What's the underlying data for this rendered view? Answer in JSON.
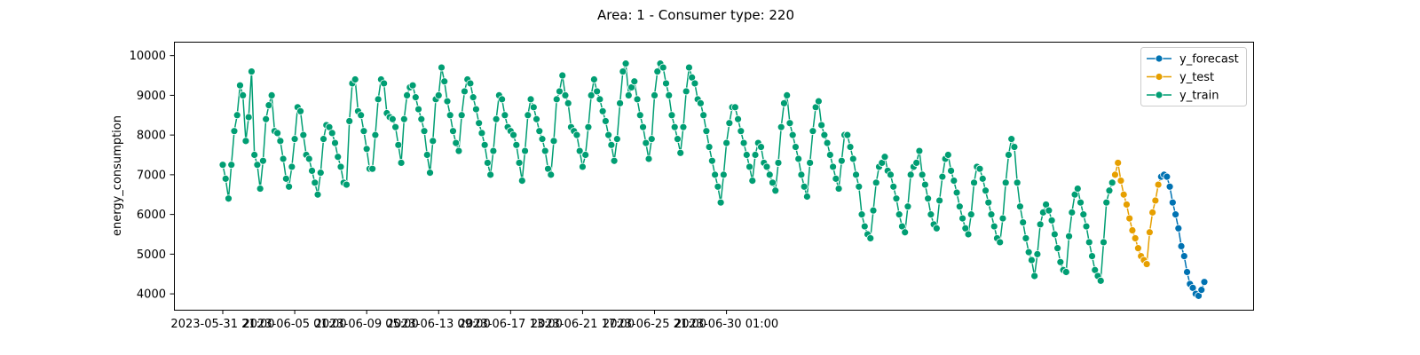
{
  "chart_data": {
    "type": "line",
    "title": "Area: 1 - Consumer type: 220",
    "xlabel": "",
    "ylabel": "energy_consumption",
    "x_start": "2023-05-31 21:00",
    "x_step_hours": 4,
    "x_ticks": [
      "2023-05-31 21:00",
      "2023-06-05 01:00",
      "2023-06-09 05:00",
      "2023-06-13 09:00",
      "2023-06-17 13:00",
      "2023-06-21 17:00",
      "2023-06-25 21:00",
      "2023-06-30 01:00"
    ],
    "y_ticks": [
      4000,
      5000,
      6000,
      7000,
      8000,
      9000,
      10000
    ],
    "ylim": [
      3600,
      10350
    ],
    "grid": false,
    "legend_position": "top-right",
    "legend": [
      "y_forecast",
      "y_test",
      "y_train"
    ],
    "colors": {
      "y_forecast": "#0072b2",
      "y_test": "#e69f00",
      "y_train": "#009e73"
    },
    "series": [
      {
        "name": "y_train",
        "values": [
          7250,
          6900,
          6400,
          7250,
          8100,
          8500,
          9250,
          9000,
          7850,
          8450,
          9600,
          7500,
          7250,
          6650,
          7350,
          8400,
          8750,
          9000,
          8100,
          8050,
          7850,
          7400,
          6900,
          6700,
          7200,
          7900,
          8700,
          8600,
          8000,
          7500,
          7400,
          7100,
          6800,
          6500,
          7050,
          7900,
          8250,
          8200,
          8050,
          7800,
          7450,
          7200,
          6800,
          6750,
          8350,
          9300,
          9400,
          8600,
          8500,
          8100,
          7650,
          7150,
          7150,
          8000,
          8900,
          9400,
          9300,
          8550,
          8450,
          8400,
          8200,
          7750,
          7300,
          8400,
          9000,
          9200,
          9250,
          8950,
          8650,
          8400,
          8100,
          7500,
          7050,
          7850,
          8900,
          9000,
          9700,
          9350,
          8850,
          8500,
          8100,
          7800,
          7600,
          8500,
          9100,
          9400,
          9300,
          8950,
          8650,
          8300,
          8050,
          7750,
          7300,
          7000,
          7600,
          8400,
          9000,
          8900,
          8500,
          8200,
          8100,
          8000,
          7750,
          7300,
          6850,
          7600,
          8500,
          8900,
          8700,
          8400,
          8100,
          7900,
          7600,
          7150,
          7000,
          7850,
          8900,
          9100,
          9500,
          9000,
          8800,
          8200,
          8100,
          8000,
          7600,
          7200,
          7500,
          8200,
          9000,
          9400,
          9100,
          8900,
          8600,
          8350,
          8000,
          7750,
          7350,
          7900,
          8800,
          9600,
          9800,
          9000,
          9200,
          9350,
          8900,
          8500,
          8200,
          7800,
          7400,
          7900,
          9000,
          9600,
          9800,
          9700,
          9300,
          9000,
          8500,
          8200,
          7900,
          7550,
          8200,
          9100,
          9700,
          9450,
          9300,
          8900,
          8800,
          8500,
          8100,
          7700,
          7350,
          7000,
          6700,
          6300,
          7000,
          7800,
          8300,
          8700,
          8700,
          8400,
          8100,
          7800,
          7500,
          7200,
          6850,
          7500,
          7800,
          7700,
          7300,
          7200,
          7000,
          6800,
          6600,
          7300,
          8200,
          8800,
          9000,
          8300,
          8000,
          7700,
          7400,
          7000,
          6700,
          6450,
          7300,
          8100,
          8700,
          8850,
          8250,
          8000,
          7800,
          7500,
          7200,
          6900,
          6650,
          7350,
          8000,
          8000,
          7700,
          7400,
          7000,
          6700,
          6000,
          5700,
          5500,
          5400,
          6100,
          6800,
          7200,
          7300,
          7450,
          7100,
          7000,
          6700,
          6400,
          6000,
          5700,
          5550,
          6200,
          7000,
          7200,
          7300,
          7600,
          7000,
          6750,
          6400,
          6000,
          5750,
          5650,
          6350,
          6950,
          7400,
          7500,
          7100,
          6850,
          6550,
          6200,
          5900,
          5650,
          5500,
          6000,
          6800,
          7200,
          7150,
          6900,
          6600,
          6300,
          6000,
          5700,
          5400,
          5300,
          5900,
          6800,
          7500,
          7900,
          7700,
          6800,
          6200,
          5800,
          5400,
          5050,
          4850,
          4450,
          5000,
          5750,
          6050,
          6250,
          6100,
          5850,
          5500,
          5150,
          4800,
          4600,
          4550,
          5450,
          6050,
          6500,
          6650,
          6300,
          6000,
          5700,
          5300,
          4950,
          4600,
          4450,
          4330,
          5300,
          6300,
          6600,
          6800
        ]
      },
      {
        "name": "y_test",
        "start_index": 310,
        "values": [
          7000,
          7300,
          6850,
          6500,
          6250,
          5900,
          5600,
          5400,
          5150,
          4950,
          4850,
          4750,
          5550,
          6050,
          6350,
          6750,
          6950
        ]
      },
      {
        "name": "y_forecast",
        "start_index": 326,
        "values": [
          6950,
          7000,
          6950,
          6700,
          6300,
          6000,
          5650,
          5200,
          4950,
          4550,
          4250,
          4150,
          4000,
          3950,
          4100,
          4300
        ]
      }
    ]
  }
}
